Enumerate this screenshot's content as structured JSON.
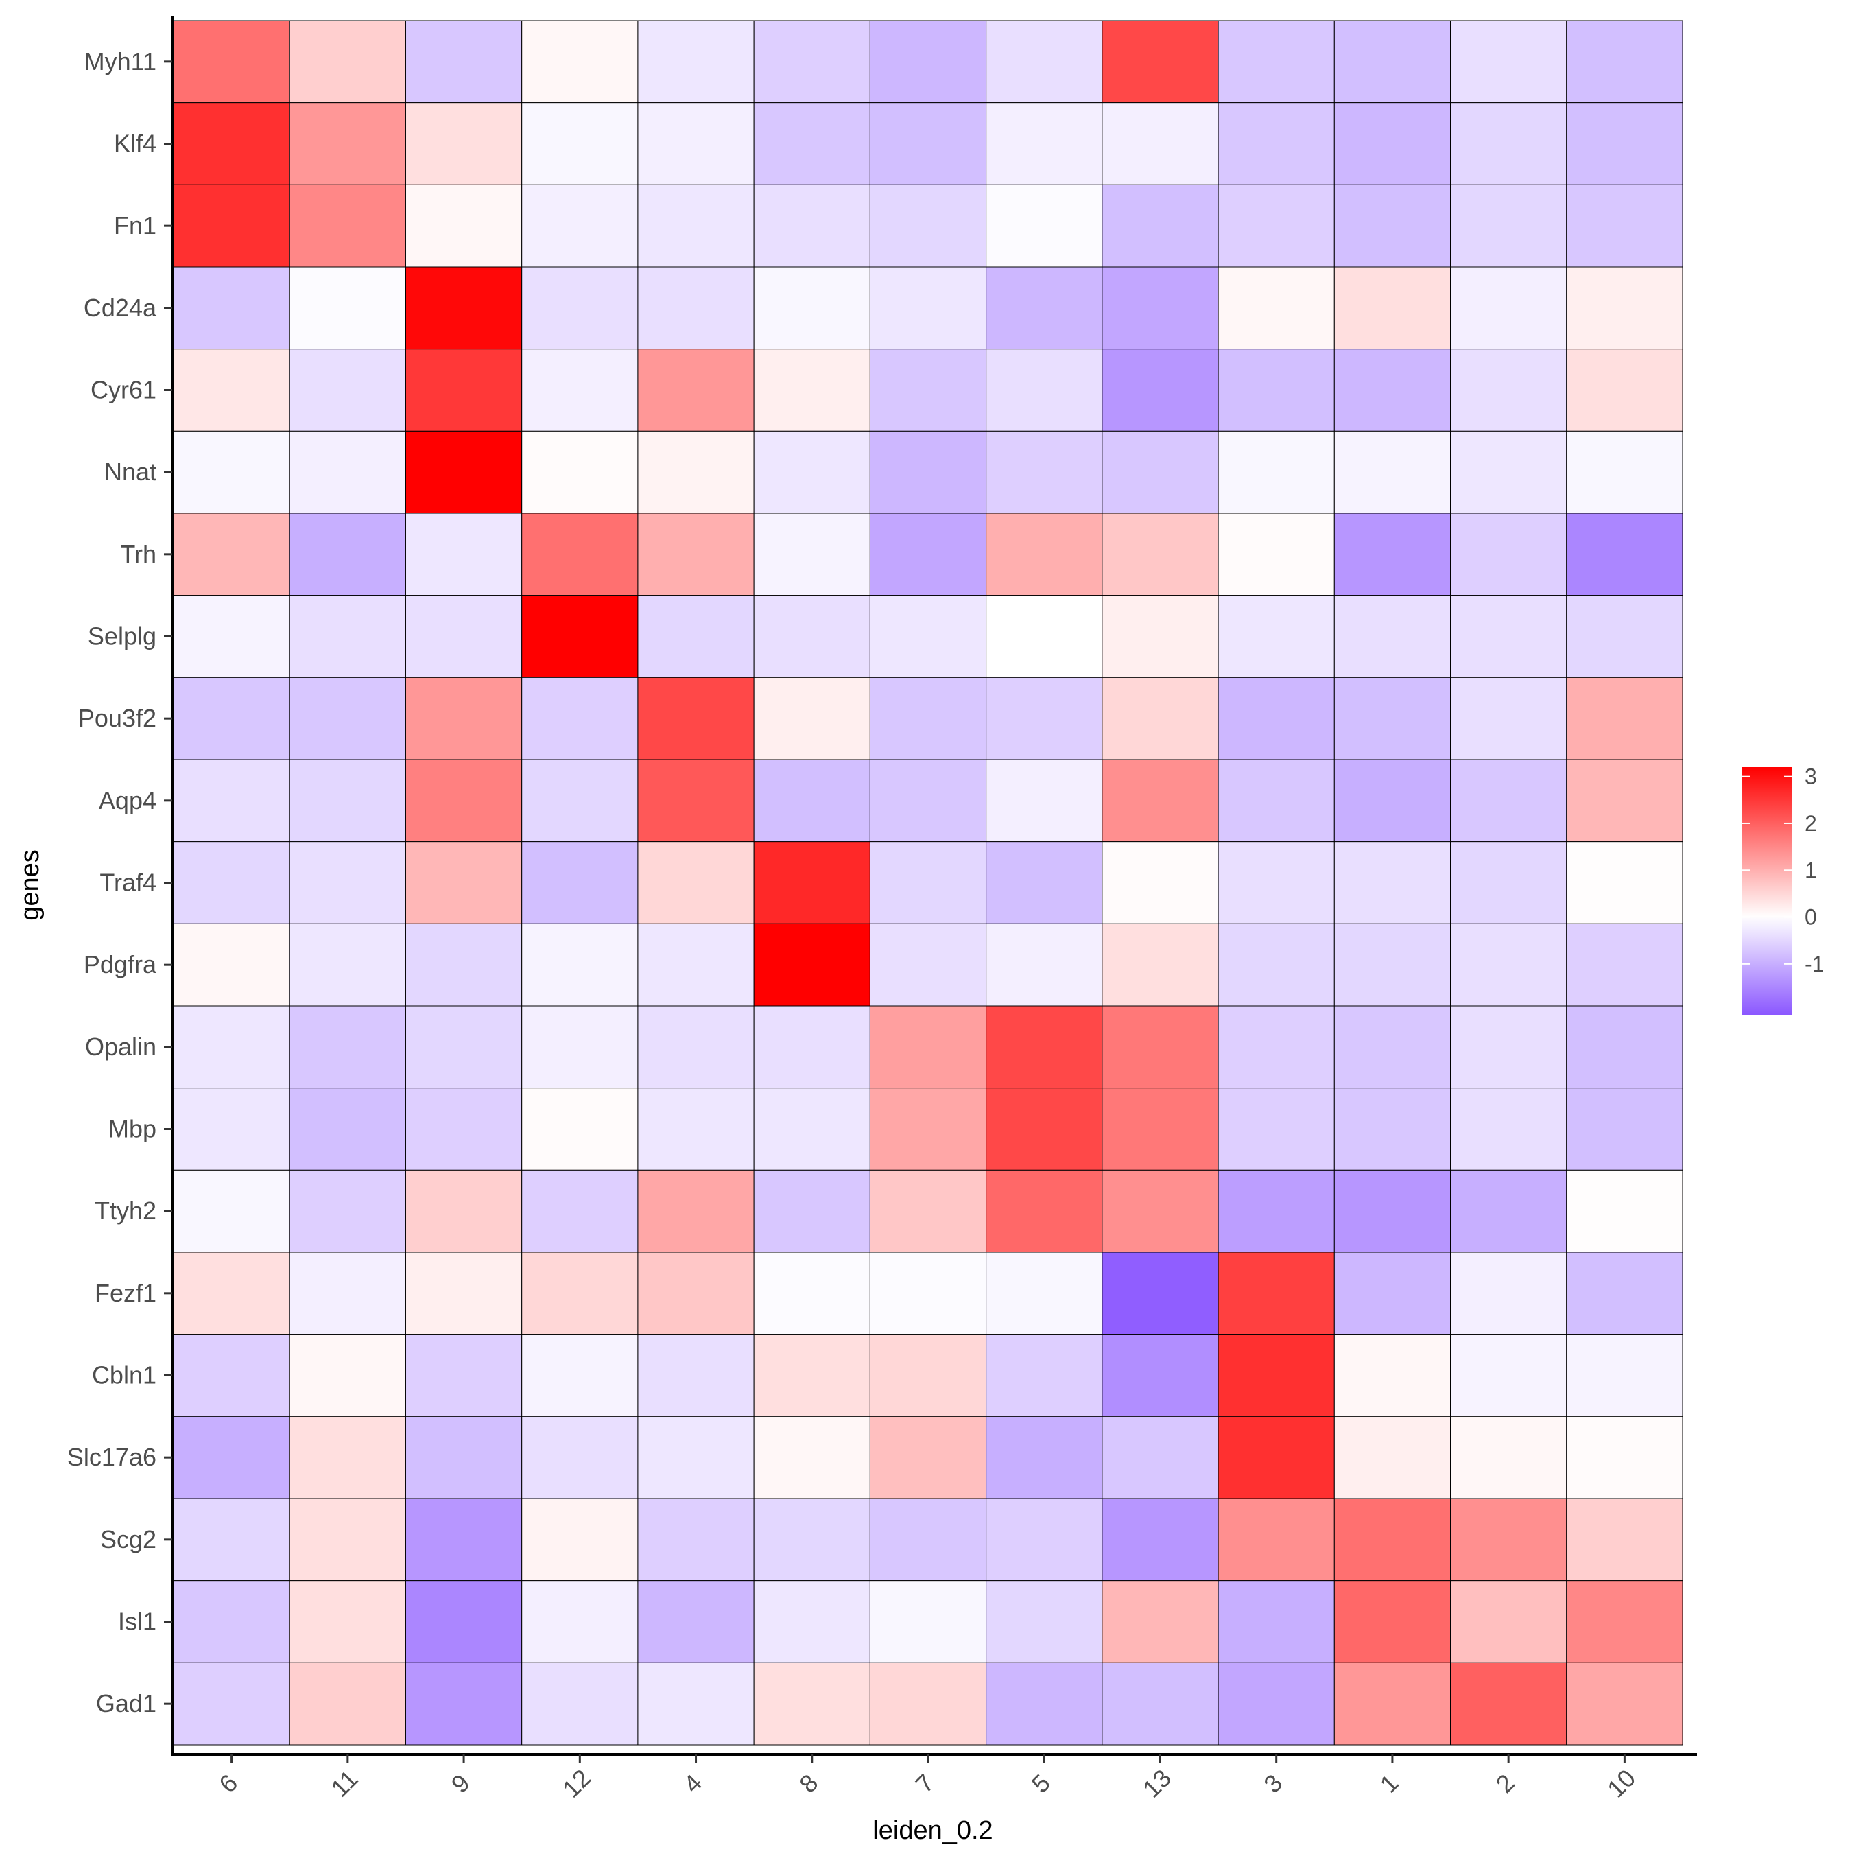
{
  "chart_data": {
    "type": "heatmap",
    "title": "",
    "xlabel": "leiden_0.2",
    "ylabel": "genes",
    "x_categories": [
      "6",
      "11",
      "9",
      "12",
      "4",
      "8",
      "7",
      "5",
      "13",
      "3",
      "1",
      "2",
      "10"
    ],
    "y_categories": [
      "Myh11",
      "Klf4",
      "Fn1",
      "Cd24a",
      "Cyr61",
      "Nnat",
      "Trh",
      "Selplg",
      "Pou3f2",
      "Aqp4",
      "Traf4",
      "Pdgfra",
      "Opalin",
      "Mbp",
      "Ttyh2",
      "Fezf1",
      "Cbln1",
      "Slc17a6",
      "Scg2",
      "Isl1",
      "Gad1"
    ],
    "values": [
      [
        1.8,
        0.6,
        -0.7,
        0.1,
        -0.3,
        -0.6,
        -0.9,
        -0.4,
        2.3,
        -0.7,
        -0.8,
        -0.4,
        -0.8
      ],
      [
        2.6,
        1.3,
        0.4,
        -0.1,
        -0.2,
        -0.7,
        -0.8,
        -0.2,
        -0.2,
        -0.7,
        -0.9,
        -0.5,
        -0.8
      ],
      [
        2.6,
        1.5,
        0.1,
        -0.2,
        -0.3,
        -0.4,
        -0.5,
        -0.05,
        -0.8,
        -0.6,
        -0.8,
        -0.5,
        -0.7
      ],
      [
        -0.7,
        -0.05,
        3.1,
        -0.4,
        -0.4,
        -0.1,
        -0.3,
        -0.9,
        -1.1,
        0.1,
        0.4,
        -0.2,
        0.2
      ],
      [
        0.3,
        -0.4,
        2.5,
        -0.2,
        1.3,
        0.2,
        -0.7,
        -0.4,
        -1.3,
        -0.8,
        -0.9,
        -0.4,
        0.4
      ],
      [
        -0.1,
        -0.2,
        3.2,
        0.05,
        0.15,
        -0.3,
        -0.9,
        -0.6,
        -0.7,
        -0.1,
        -0.15,
        -0.3,
        -0.1
      ],
      [
        0.9,
        -1.0,
        -0.3,
        1.8,
        1.0,
        -0.15,
        -1.1,
        1.0,
        0.7,
        0.05,
        -1.3,
        -0.6,
        -1.5
      ],
      [
        -0.15,
        -0.4,
        -0.4,
        3.2,
        -0.5,
        -0.4,
        -0.3,
        0.0,
        0.2,
        -0.3,
        -0.4,
        -0.4,
        -0.5
      ],
      [
        -0.7,
        -0.7,
        1.3,
        -0.6,
        2.3,
        0.2,
        -0.7,
        -0.6,
        0.5,
        -0.9,
        -0.8,
        -0.4,
        1.0
      ],
      [
        -0.4,
        -0.5,
        1.6,
        -0.5,
        2.1,
        -0.8,
        -0.7,
        -0.2,
        1.4,
        -0.7,
        -1.0,
        -0.7,
        0.9
      ],
      [
        -0.5,
        -0.4,
        0.9,
        -0.8,
        0.5,
        2.7,
        -0.5,
        -0.8,
        0.05,
        -0.4,
        -0.4,
        -0.5,
        0.02
      ],
      [
        0.1,
        -0.3,
        -0.5,
        -0.15,
        -0.3,
        3.2,
        -0.4,
        -0.2,
        0.4,
        -0.5,
        -0.5,
        -0.4,
        -0.6
      ],
      [
        -0.3,
        -0.7,
        -0.5,
        -0.2,
        -0.4,
        -0.4,
        1.2,
        2.3,
        1.7,
        -0.6,
        -0.7,
        -0.4,
        -0.8
      ],
      [
        -0.3,
        -0.8,
        -0.6,
        0.05,
        -0.3,
        -0.3,
        1.1,
        2.3,
        1.7,
        -0.6,
        -0.7,
        -0.4,
        -0.8
      ],
      [
        -0.1,
        -0.6,
        0.6,
        -0.6,
        1.1,
        -0.7,
        0.7,
        1.9,
        1.4,
        -1.2,
        -1.3,
        -1.0,
        0.02
      ],
      [
        0.4,
        -0.2,
        0.2,
        0.5,
        0.7,
        -0.05,
        -0.05,
        -0.1,
        -2.0,
        2.4,
        -0.9,
        -0.2,
        -0.8
      ],
      [
        -0.6,
        0.1,
        -0.6,
        -0.15,
        -0.4,
        0.4,
        0.5,
        -0.6,
        -1.4,
        2.6,
        0.1,
        -0.15,
        -0.15
      ],
      [
        -1.0,
        0.4,
        -0.8,
        -0.4,
        -0.3,
        0.1,
        0.8,
        -1.0,
        -0.7,
        2.6,
        0.2,
        0.1,
        0.05
      ],
      [
        -0.5,
        0.4,
        -1.3,
        0.15,
        -0.6,
        -0.5,
        -0.7,
        -0.6,
        -1.3,
        1.4,
        1.8,
        1.4,
        0.6
      ],
      [
        -0.7,
        0.4,
        -1.5,
        -0.2,
        -0.9,
        -0.3,
        -0.1,
        -0.5,
        0.9,
        -1.0,
        1.9,
        0.8,
        1.5
      ],
      [
        -0.6,
        0.6,
        -1.3,
        -0.4,
        -0.3,
        0.4,
        0.5,
        -0.9,
        -0.8,
        -1.1,
        1.3,
        2.0,
        1.1
      ]
    ],
    "color_scale": {
      "low_color": "#8a56ff",
      "mid_color": "#ffffff",
      "high_color": "#ff0000",
      "min": -2.1,
      "mid": 0,
      "max": 3.2
    },
    "colorbar_ticks": [
      "3",
      "2",
      "1",
      "0",
      "-1"
    ],
    "colorbar_tick_values": [
      3,
      2,
      1,
      0,
      -1
    ],
    "grid": false,
    "legend_position": "right"
  }
}
